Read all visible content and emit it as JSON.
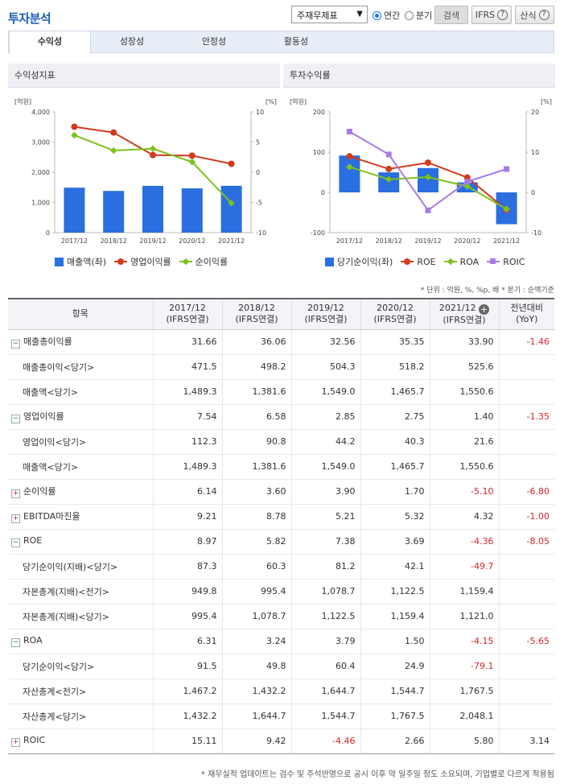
{
  "header": {
    "title": "투자분석",
    "select_value": "주재무제표",
    "radio_annual": "연간",
    "radio_quarter": "분기",
    "search_button": "검색",
    "ifrs_button": "IFRS",
    "formula_button": "산식"
  },
  "tabs": [
    "수익성",
    "성장성",
    "안정성",
    "활동성"
  ],
  "left_panel": {
    "title": "수익성지표",
    "unit_left": "[억원]",
    "unit_right": "[%]",
    "legend": [
      "매출액(좌)",
      "영업이익률",
      "순이익률"
    ]
  },
  "right_panel": {
    "title": "투자수익률",
    "unit_left": "[억원]",
    "unit_right": "[%]",
    "legend": [
      "당기순이익(좌)",
      "ROE",
      "ROA",
      "ROIC"
    ]
  },
  "chart_data": [
    {
      "type": "bar",
      "title": "수익성지표",
      "categories": [
        "2017/12",
        "2018/12",
        "2019/12",
        "2020/12",
        "2021/12"
      ],
      "series": [
        {
          "name": "매출액(좌)",
          "type": "bar",
          "axis": "left",
          "color": "#2a6ee0",
          "values": [
            1489.3,
            1381.6,
            1549.0,
            1465.7,
            1550.6
          ]
        },
        {
          "name": "영업이익률",
          "type": "line",
          "axis": "right",
          "color": "#d23a1e",
          "marker": "circle",
          "values": [
            7.54,
            6.58,
            2.85,
            2.75,
            1.4
          ]
        },
        {
          "name": "순이익률",
          "type": "line",
          "axis": "right",
          "color": "#7dc21e",
          "marker": "diamond",
          "values": [
            6.14,
            3.6,
            3.9,
            1.7,
            -5.1
          ]
        }
      ],
      "ylim_left": [
        0,
        4000
      ],
      "yticks_left": [
        "4,000",
        "3,000",
        "2,000",
        "1,000",
        "0"
      ],
      "ylim_right": [
        -10,
        10
      ],
      "yticks_right": [
        "10",
        "5",
        "0",
        "-5",
        "-10"
      ]
    },
    {
      "type": "bar",
      "title": "투자수익률",
      "categories": [
        "2017/12",
        "2018/12",
        "2019/12",
        "2020/12",
        "2021/12"
      ],
      "series": [
        {
          "name": "당기순이익(좌)",
          "type": "bar",
          "axis": "left",
          "color": "#2a6ee0",
          "values": [
            91.5,
            49.8,
            60.4,
            24.9,
            -79.1
          ]
        },
        {
          "name": "ROE",
          "type": "line",
          "axis": "right",
          "color": "#d23a1e",
          "marker": "circle",
          "values": [
            8.97,
            5.82,
            7.38,
            3.69,
            -4.36
          ]
        },
        {
          "name": "ROA",
          "type": "line",
          "axis": "right",
          "color": "#7dc21e",
          "marker": "diamond",
          "values": [
            6.31,
            3.24,
            3.79,
            1.5,
            -4.15
          ]
        },
        {
          "name": "ROIC",
          "type": "line",
          "axis": "right",
          "color": "#a77be6",
          "marker": "square",
          "values": [
            15.11,
            9.42,
            -4.46,
            2.66,
            5.8
          ]
        }
      ],
      "ylim_left": [
        -100,
        200
      ],
      "yticks_left": [
        "200",
        "100",
        "0",
        "-100"
      ],
      "ylim_right": [
        -10,
        20
      ],
      "yticks_right": [
        "20",
        "10",
        "0",
        "-10"
      ]
    }
  ],
  "unit_note": "* 단위 : 억원, %, %p, 배   * 분기 : 순액기준",
  "table": {
    "headers": [
      {
        "line1": "항목",
        "line2": ""
      },
      {
        "line1": "2017/12",
        "line2": "(IFRS연결)"
      },
      {
        "line1": "2018/12",
        "line2": "(IFRS연결)"
      },
      {
        "line1": "2019/12",
        "line2": "(IFRS연결)"
      },
      {
        "line1": "2020/12",
        "line2": "(IFRS연결)"
      },
      {
        "line1": "2021/12",
        "line2": "(IFRS연결)"
      },
      {
        "line1": "전년대비",
        "line2": "(YoY)"
      }
    ],
    "rows": [
      {
        "label": "매출총이익률",
        "level": 0,
        "toggle": "minus",
        "values": [
          "31.66",
          "36.06",
          "32.56",
          "35.35",
          "33.90",
          "-1.46"
        ]
      },
      {
        "label": "매출총이익<당기>",
        "level": 1,
        "toggle": "",
        "values": [
          "471.5",
          "498.2",
          "504.3",
          "518.2",
          "525.6",
          ""
        ]
      },
      {
        "label": "매출액<당기>",
        "level": 1,
        "toggle": "",
        "values": [
          "1,489.3",
          "1,381.6",
          "1,549.0",
          "1,465.7",
          "1,550.6",
          ""
        ]
      },
      {
        "label": "영업이익률",
        "level": 0,
        "toggle": "minus",
        "values": [
          "7.54",
          "6.58",
          "2.85",
          "2.75",
          "1.40",
          "-1.35"
        ]
      },
      {
        "label": "영업이익<당기>",
        "level": 1,
        "toggle": "",
        "values": [
          "112.3",
          "90.8",
          "44.2",
          "40.3",
          "21.6",
          ""
        ]
      },
      {
        "label": "매출액<당기>",
        "level": 1,
        "toggle": "",
        "values": [
          "1,489.3",
          "1,381.6",
          "1,549.0",
          "1,465.7",
          "1,550.6",
          ""
        ]
      },
      {
        "label": "순이익률",
        "level": 0,
        "toggle": "plus",
        "values": [
          "6.14",
          "3.60",
          "3.90",
          "1.70",
          "-5.10",
          "-6.80"
        ]
      },
      {
        "label": "EBITDA마진율",
        "level": 0,
        "toggle": "plus",
        "values": [
          "9.21",
          "8.78",
          "5.21",
          "5.32",
          "4.32",
          "-1.00"
        ]
      },
      {
        "label": "ROE",
        "level": 0,
        "toggle": "minus",
        "values": [
          "8.97",
          "5.82",
          "7.38",
          "3.69",
          "-4.36",
          "-8.05"
        ]
      },
      {
        "label": "당기순이익(지배)<당기>",
        "level": 1,
        "toggle": "",
        "values": [
          "87.3",
          "60.3",
          "81.2",
          "42.1",
          "-49.7",
          ""
        ]
      },
      {
        "label": "자본총계(지배)<전기>",
        "level": 1,
        "toggle": "",
        "values": [
          "949.8",
          "995.4",
          "1,078.7",
          "1,122.5",
          "1,159.4",
          ""
        ]
      },
      {
        "label": "자본총계(지배)<당기>",
        "level": 1,
        "toggle": "",
        "values": [
          "995.4",
          "1,078.7",
          "1,122.5",
          "1,159.4",
          "1,121.0",
          ""
        ]
      },
      {
        "label": "ROA",
        "level": 0,
        "toggle": "minus",
        "values": [
          "6.31",
          "3.24",
          "3.79",
          "1.50",
          "-4.15",
          "-5.65"
        ]
      },
      {
        "label": "당기순이익<당기>",
        "level": 1,
        "toggle": "",
        "values": [
          "91.5",
          "49.8",
          "60.4",
          "24.9",
          "-79.1",
          ""
        ]
      },
      {
        "label": "자산총계<전기>",
        "level": 1,
        "toggle": "",
        "values": [
          "1,467.2",
          "1,432.2",
          "1,644.7",
          "1,544.7",
          "1,767.5",
          ""
        ]
      },
      {
        "label": "자산총계<당기>",
        "level": 1,
        "toggle": "",
        "values": [
          "1,432.2",
          "1,644.7",
          "1,544.7",
          "1,767.5",
          "2,048.1",
          ""
        ]
      },
      {
        "label": "ROIC",
        "level": 0,
        "toggle": "plus",
        "values": [
          "15.11",
          "9.42",
          "-4.46",
          "2.66",
          "5.80",
          "3.14"
        ]
      }
    ]
  },
  "footnote": "* 재무실적 업데이트는 검수 및 주석반영으로 공시 이후 약 일주일 정도 소요되며, 기업별로 다르게 적용됨"
}
